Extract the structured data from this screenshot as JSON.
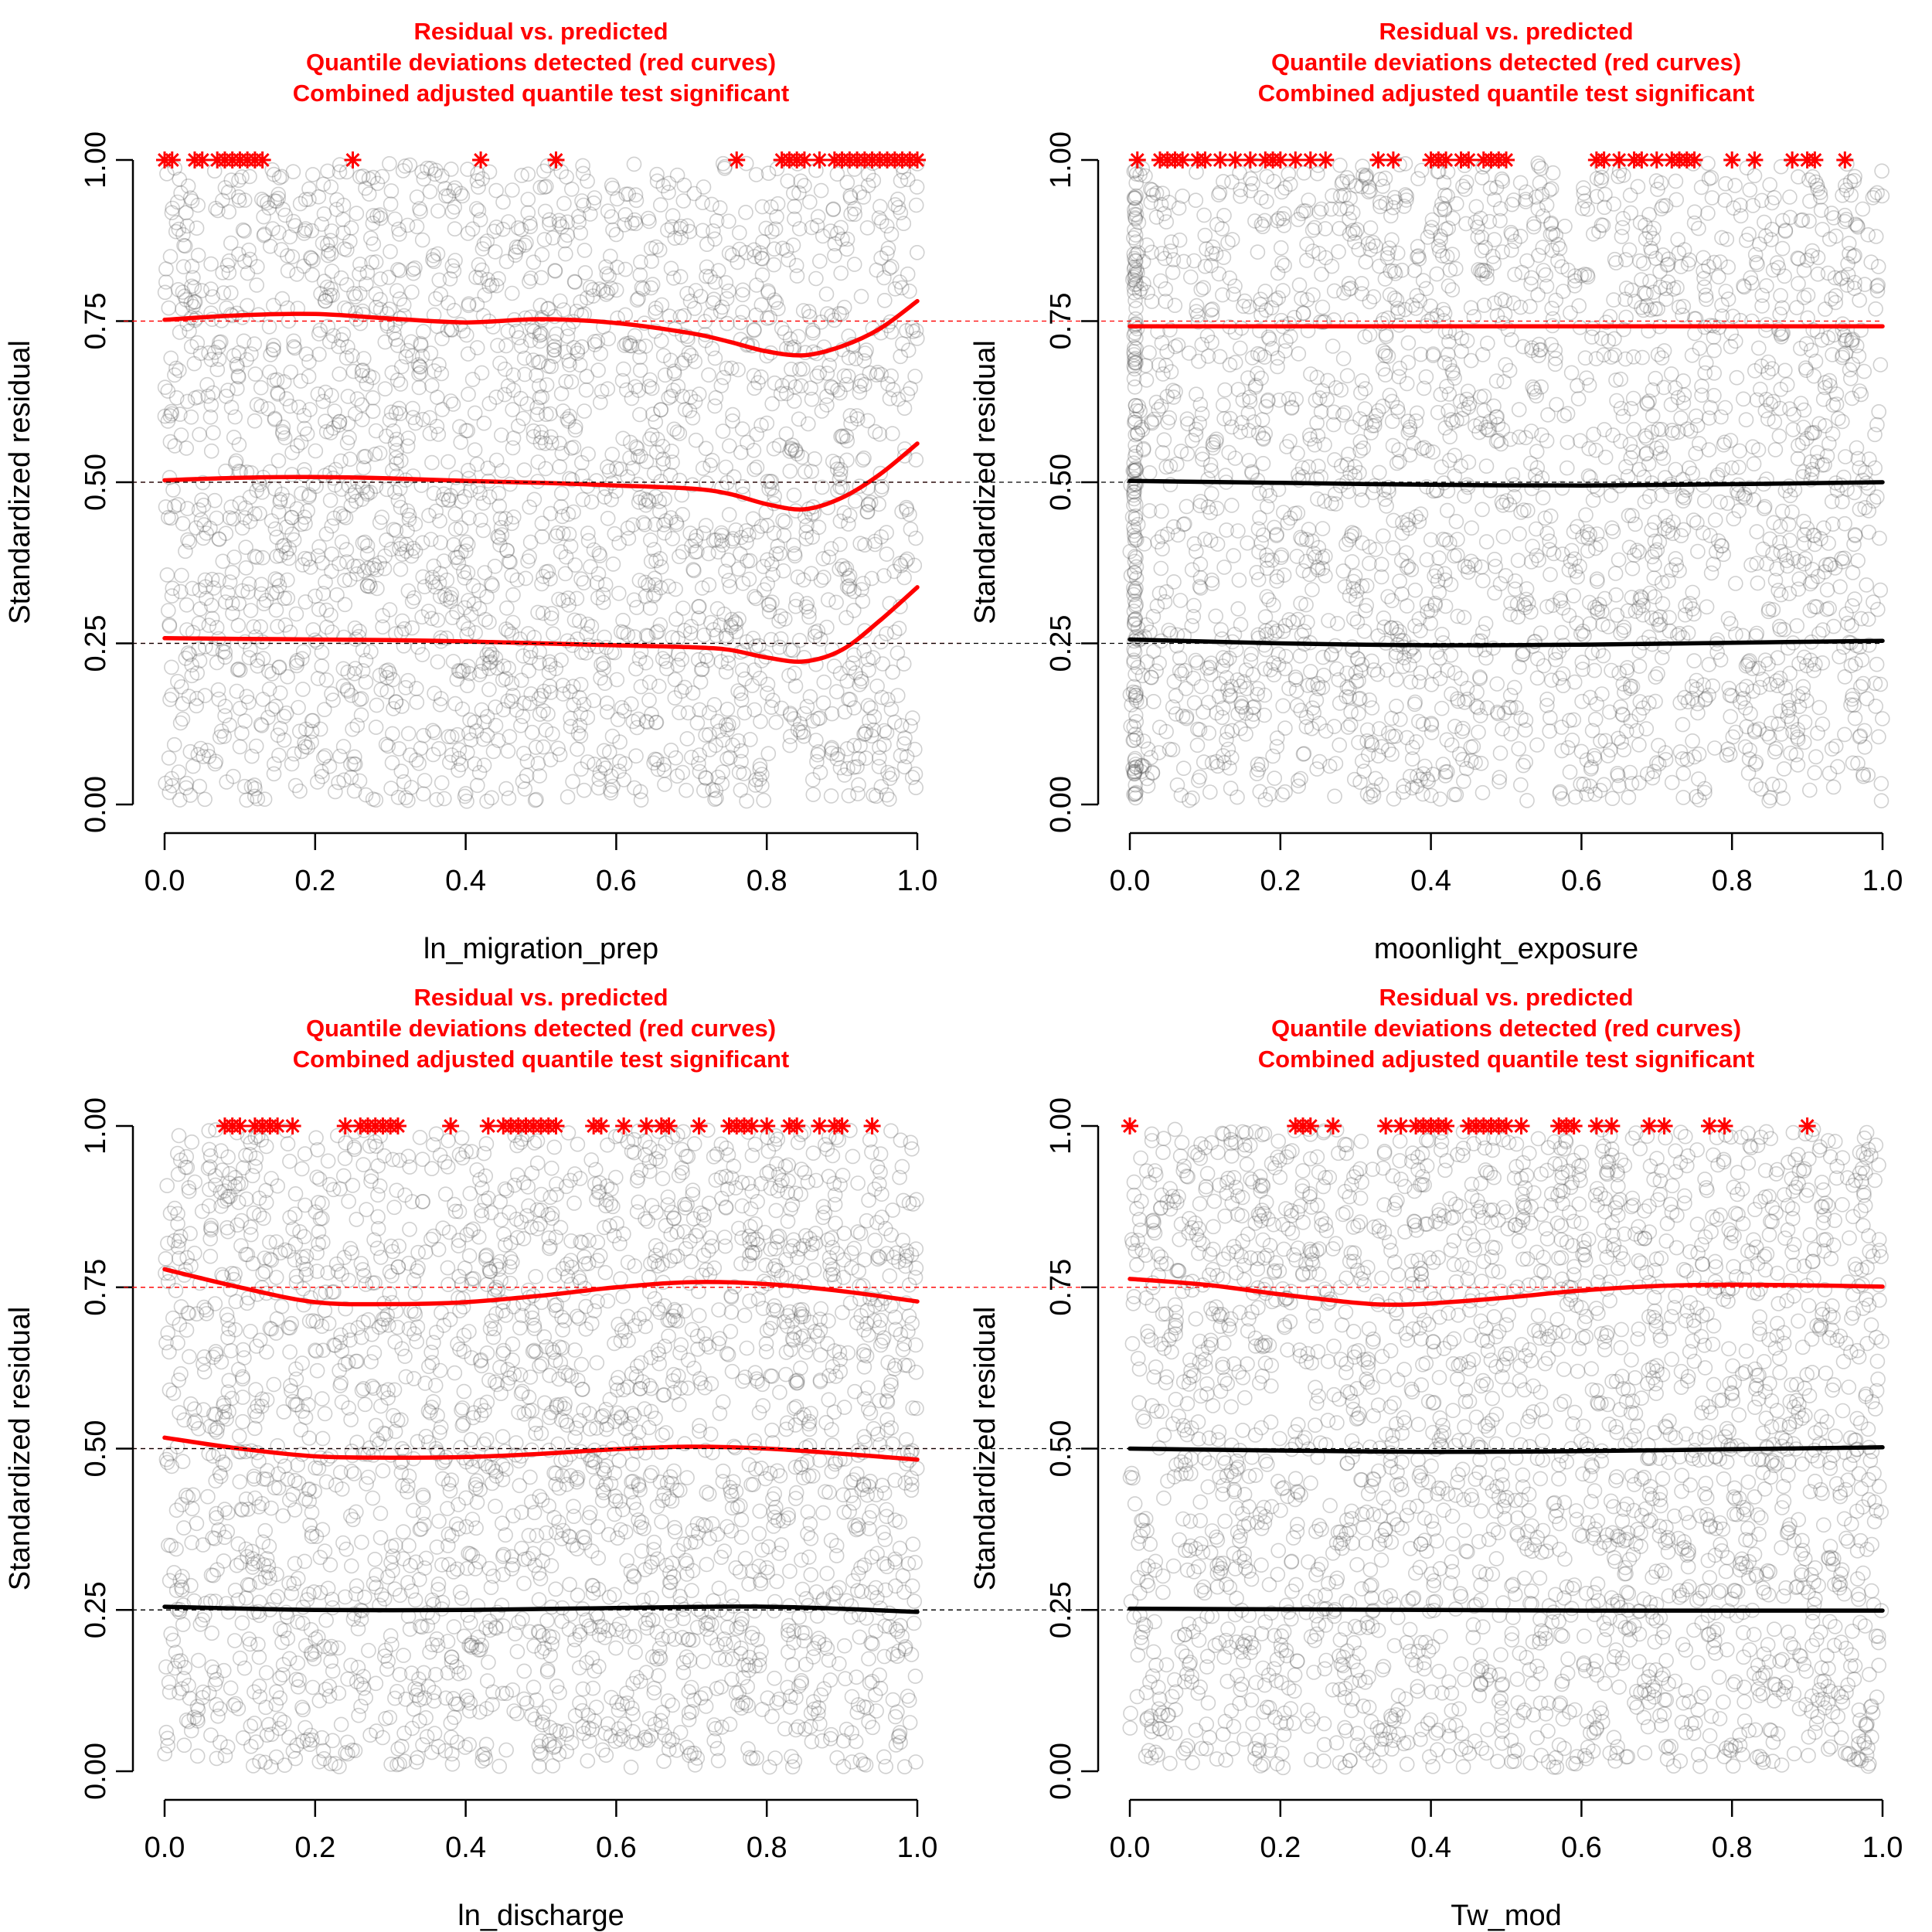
{
  "colors": {
    "flagged": "#ff0000",
    "ok": "#000000",
    "points": "#555555",
    "title": "#ff0000"
  },
  "chart_data": [
    {
      "type": "scatter",
      "title_lines": [
        "Residual vs. predicted",
        "Quantile deviations detected (red curves)",
        "Combined adjusted quantile test significant"
      ],
      "xlabel": "ln_migration_prep",
      "ylabel": "Standardized residual",
      "xlim": [
        0,
        1
      ],
      "ylim": [
        0,
        1
      ],
      "x_ticks": [
        "0.0",
        "0.2",
        "0.4",
        "0.6",
        "0.8",
        "1.0"
      ],
      "y_ticks": [
        "0.00",
        "0.25",
        "0.50",
        "0.75",
        "1.00"
      ],
      "reference_lines": [
        0.25,
        0.5,
        0.75
      ],
      "quantile_curves": [
        {
          "quantile": 0.25,
          "significant": true,
          "x": [
            0,
            0.1,
            0.2,
            0.3,
            0.4,
            0.5,
            0.6,
            0.7,
            0.75,
            0.8,
            0.85,
            0.9,
            0.95,
            1.0
          ],
          "y": [
            0.258,
            0.257,
            0.256,
            0.255,
            0.253,
            0.25,
            0.247,
            0.244,
            0.24,
            0.228,
            0.222,
            0.24,
            0.285,
            0.337
          ]
        },
        {
          "quantile": 0.5,
          "significant": true,
          "x": [
            0,
            0.1,
            0.2,
            0.3,
            0.4,
            0.5,
            0.6,
            0.7,
            0.75,
            0.8,
            0.85,
            0.9,
            0.95,
            1.0
          ],
          "y": [
            0.503,
            0.507,
            0.508,
            0.506,
            0.502,
            0.499,
            0.495,
            0.49,
            0.482,
            0.466,
            0.458,
            0.476,
            0.512,
            0.56
          ]
        },
        {
          "quantile": 0.75,
          "significant": true,
          "x": [
            0,
            0.1,
            0.2,
            0.3,
            0.4,
            0.5,
            0.6,
            0.7,
            0.75,
            0.8,
            0.85,
            0.9,
            0.95,
            1.0
          ],
          "y": [
            0.752,
            0.759,
            0.761,
            0.754,
            0.748,
            0.753,
            0.747,
            0.731,
            0.718,
            0.703,
            0.697,
            0.711,
            0.738,
            0.781
          ]
        }
      ],
      "outliers_x": [
        0.0,
        0.01,
        0.04,
        0.05,
        0.07,
        0.08,
        0.09,
        0.1,
        0.11,
        0.12,
        0.13,
        0.25,
        0.42,
        0.52,
        0.76,
        0.82,
        0.83,
        0.84,
        0.85,
        0.87,
        0.89,
        0.9,
        0.91,
        0.92,
        0.93,
        0.94,
        0.95,
        0.96,
        0.97,
        0.98,
        0.99,
        1.0
      ]
    },
    {
      "type": "scatter",
      "title_lines": [
        "Residual vs. predicted",
        "Quantile deviations detected (red curves)",
        "Combined adjusted quantile test significant"
      ],
      "xlabel": "moonlight_exposure",
      "ylabel": "Standardized residual",
      "xlim": [
        0,
        1
      ],
      "ylim": [
        0,
        1
      ],
      "x_ticks": [
        "0.0",
        "0.2",
        "0.4",
        "0.6",
        "0.8",
        "1.0"
      ],
      "y_ticks": [
        "0.00",
        "0.25",
        "0.50",
        "0.75",
        "1.00"
      ],
      "reference_lines": [
        0.25,
        0.5,
        0.75
      ],
      "quantile_curves": [
        {
          "quantile": 0.25,
          "significant": false,
          "x": [
            0,
            0.2,
            0.4,
            0.6,
            0.8,
            1.0
          ],
          "y": [
            0.256,
            0.25,
            0.247,
            0.248,
            0.251,
            0.254
          ]
        },
        {
          "quantile": 0.5,
          "significant": false,
          "x": [
            0,
            0.2,
            0.4,
            0.6,
            0.8,
            1.0
          ],
          "y": [
            0.502,
            0.499,
            0.496,
            0.495,
            0.497,
            0.5
          ]
        },
        {
          "quantile": 0.75,
          "significant": true,
          "x": [
            0,
            0.2,
            0.4,
            0.6,
            0.8,
            1.0
          ],
          "y": [
            0.742,
            0.742,
            0.742,
            0.742,
            0.742,
            0.742
          ]
        }
      ],
      "outliers_x": [
        0.01,
        0.04,
        0.05,
        0.06,
        0.07,
        0.09,
        0.1,
        0.12,
        0.14,
        0.16,
        0.18,
        0.19,
        0.2,
        0.22,
        0.24,
        0.26,
        0.33,
        0.35,
        0.4,
        0.41,
        0.42,
        0.44,
        0.45,
        0.47,
        0.48,
        0.49,
        0.5,
        0.62,
        0.63,
        0.65,
        0.67,
        0.68,
        0.7,
        0.72,
        0.73,
        0.74,
        0.75,
        0.8,
        0.83,
        0.88,
        0.9,
        0.91,
        0.95
      ]
    },
    {
      "type": "scatter",
      "title_lines": [
        "Residual vs. predicted",
        "Quantile deviations detected (red curves)",
        "Combined adjusted quantile test significant"
      ],
      "xlabel": "ln_discharge",
      "ylabel": "Standardized residual",
      "xlim": [
        0,
        1
      ],
      "ylim": [
        0,
        1
      ],
      "x_ticks": [
        "0.0",
        "0.2",
        "0.4",
        "0.6",
        "0.8",
        "1.0"
      ],
      "y_ticks": [
        "0.00",
        "0.25",
        "0.50",
        "0.75",
        "1.00"
      ],
      "reference_lines": [
        0.25,
        0.5,
        0.75
      ],
      "quantile_curves": [
        {
          "quantile": 0.25,
          "significant": false,
          "x": [
            0,
            0.2,
            0.4,
            0.6,
            0.8,
            1.0
          ],
          "y": [
            0.255,
            0.25,
            0.25,
            0.253,
            0.255,
            0.247
          ]
        },
        {
          "quantile": 0.5,
          "significant": true,
          "x": [
            0,
            0.1,
            0.2,
            0.3,
            0.4,
            0.5,
            0.6,
            0.7,
            0.8,
            0.9,
            1.0
          ],
          "y": [
            0.517,
            0.5,
            0.488,
            0.486,
            0.487,
            0.492,
            0.499,
            0.503,
            0.5,
            0.492,
            0.483
          ]
        },
        {
          "quantile": 0.75,
          "significant": true,
          "x": [
            0,
            0.1,
            0.2,
            0.3,
            0.4,
            0.5,
            0.6,
            0.7,
            0.8,
            0.9,
            1.0
          ],
          "y": [
            0.778,
            0.75,
            0.727,
            0.724,
            0.727,
            0.737,
            0.75,
            0.758,
            0.755,
            0.744,
            0.728
          ]
        }
      ],
      "outliers_x": [
        0.08,
        0.09,
        0.1,
        0.12,
        0.13,
        0.14,
        0.15,
        0.17,
        0.24,
        0.26,
        0.27,
        0.28,
        0.29,
        0.3,
        0.31,
        0.38,
        0.43,
        0.45,
        0.46,
        0.47,
        0.48,
        0.49,
        0.5,
        0.51,
        0.52,
        0.57,
        0.58,
        0.61,
        0.64,
        0.66,
        0.67,
        0.71,
        0.75,
        0.76,
        0.77,
        0.78,
        0.8,
        0.83,
        0.84,
        0.87,
        0.89,
        0.9,
        0.94
      ]
    },
    {
      "type": "scatter",
      "title_lines": [
        "Residual vs. predicted",
        "Quantile deviations detected (red curves)",
        "Combined adjusted quantile test significant"
      ],
      "xlabel": "Tw_mod",
      "ylabel": "Standardized residual",
      "xlim": [
        0,
        1
      ],
      "ylim": [
        0,
        1
      ],
      "x_ticks": [
        "0.0",
        "0.2",
        "0.4",
        "0.6",
        "0.8",
        "1.0"
      ],
      "y_ticks": [
        "0.00",
        "0.25",
        "0.50",
        "0.75",
        "1.00"
      ],
      "reference_lines": [
        0.25,
        0.5,
        0.75
      ],
      "quantile_curves": [
        {
          "quantile": 0.25,
          "significant": false,
          "x": [
            0,
            0.2,
            0.4,
            0.6,
            0.8,
            1.0
          ],
          "y": [
            0.252,
            0.251,
            0.25,
            0.249,
            0.249,
            0.249
          ]
        },
        {
          "quantile": 0.5,
          "significant": false,
          "x": [
            0,
            0.2,
            0.4,
            0.6,
            0.8,
            1.0
          ],
          "y": [
            0.5,
            0.497,
            0.495,
            0.496,
            0.499,
            0.502
          ]
        },
        {
          "quantile": 0.75,
          "significant": true,
          "x": [
            0,
            0.1,
            0.2,
            0.3,
            0.35,
            0.4,
            0.5,
            0.6,
            0.7,
            0.8,
            0.9,
            1.0
          ],
          "y": [
            0.763,
            0.754,
            0.739,
            0.726,
            0.723,
            0.725,
            0.734,
            0.745,
            0.752,
            0.754,
            0.753,
            0.751
          ]
        }
      ],
      "outliers_x": [
        0.0,
        0.22,
        0.23,
        0.24,
        0.27,
        0.34,
        0.36,
        0.38,
        0.39,
        0.4,
        0.41,
        0.42,
        0.45,
        0.46,
        0.47,
        0.48,
        0.49,
        0.5,
        0.52,
        0.57,
        0.58,
        0.59,
        0.62,
        0.64,
        0.69,
        0.71,
        0.77,
        0.79,
        0.9
      ]
    }
  ]
}
